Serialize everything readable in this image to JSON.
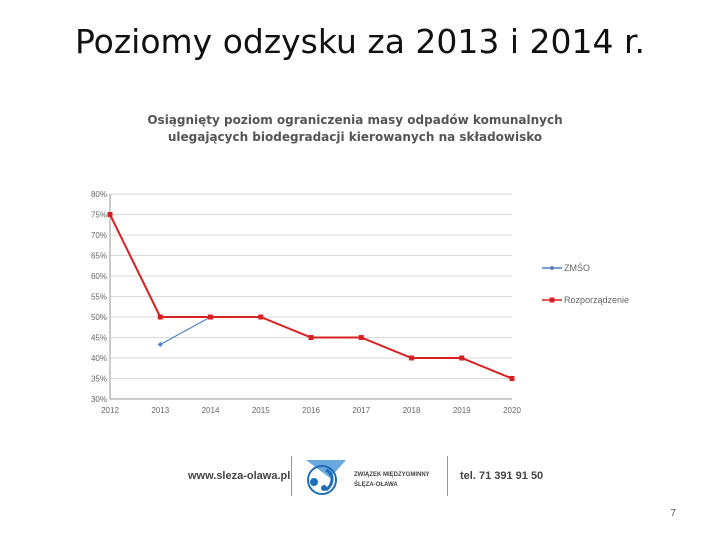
{
  "slide": {
    "title": "Poziomy odzysku za 2013 i 2014 r.",
    "page_number": "7"
  },
  "chart_data": {
    "type": "line",
    "title": "Osiągnięty poziom ograniczenia masy odpadów komunalnych ulegających biodegradacji kierowanych na składowisko",
    "x": [
      "2012",
      "2013",
      "2014",
      "2015",
      "2016",
      "2017",
      "2018",
      "2019",
      "2020"
    ],
    "y_ticks": [
      "30%",
      "35%",
      "40%",
      "45%",
      "50%",
      "55%",
      "60%",
      "65%",
      "70%",
      "75%",
      "80%"
    ],
    "ylim": [
      30,
      80
    ],
    "y_unit": "%",
    "grid": true,
    "legend_position": "right",
    "series": [
      {
        "name": "ZMŚO",
        "color": "#4f81bd",
        "marker": "diamond",
        "points": [
          {
            "x": "2013",
            "y": 43.3
          },
          {
            "x": "2014",
            "y": 50
          }
        ]
      },
      {
        "name": "Rozporządzenie",
        "color": "#d92020",
        "marker": "square",
        "points": [
          {
            "x": "2012",
            "y": 75
          },
          {
            "x": "2013",
            "y": 50
          },
          {
            "x": "2014",
            "y": 50
          },
          {
            "x": "2015",
            "y": 50
          },
          {
            "x": "2016",
            "y": 45
          },
          {
            "x": "2017",
            "y": 45
          },
          {
            "x": "2018",
            "y": 40
          },
          {
            "x": "2019",
            "y": 40
          },
          {
            "x": "2020",
            "y": 35
          }
        ]
      }
    ]
  },
  "footer": {
    "website": "www.sleza-olawa.pl",
    "org_line1": "ZWIĄZEK MIĘDZYGMINNY",
    "org_line2": "ŚLĘZA-OŁAWA",
    "phone": "tel. 71 391 91 50",
    "logo_color": "#1f6fb8"
  }
}
